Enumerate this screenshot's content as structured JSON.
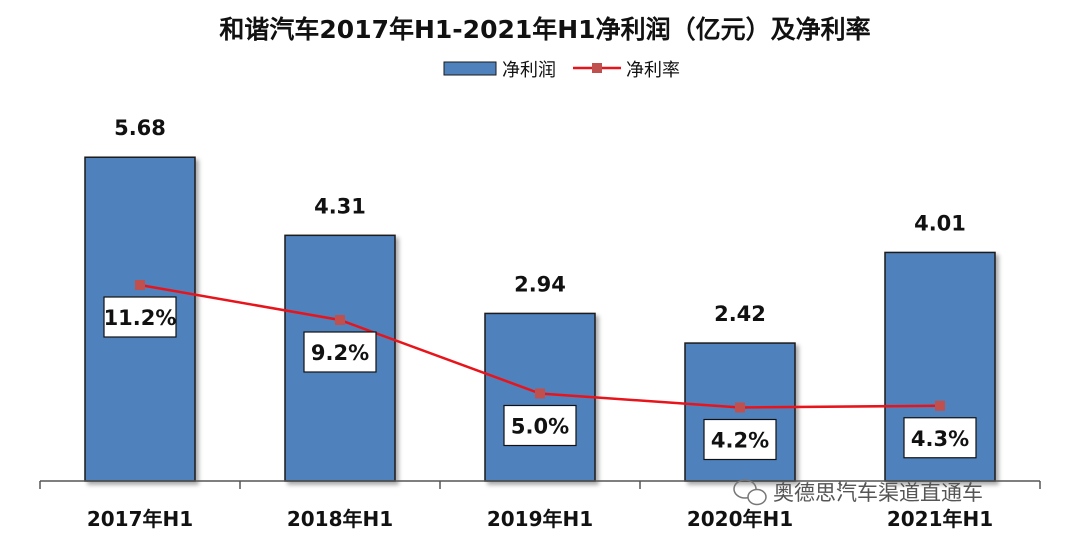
{
  "chart_data": {
    "type": "bar",
    "title": "和谐汽车2017年H1-2021年H1净利润（亿元）及净利率",
    "categories": [
      "2017年H1",
      "2018年H1",
      "2019年H1",
      "2020年H1",
      "2021年H1"
    ],
    "series": [
      {
        "name": "净利润",
        "kind": "bar",
        "values": [
          5.68,
          4.31,
          2.94,
          2.42,
          4.01
        ],
        "labels": [
          "5.68",
          "4.31",
          "2.94",
          "2.42",
          "4.01"
        ]
      },
      {
        "name": "净利率",
        "kind": "line",
        "values": [
          11.2,
          9.2,
          5.0,
          4.2,
          4.3
        ],
        "labels": [
          "11.2%",
          "9.2%",
          "5.0%",
          "4.2%",
          "4.3%"
        ]
      }
    ],
    "legend_position": "top",
    "grid": false,
    "colors": {
      "bar": "#4F81BD",
      "bar_border": "#1A1A1A",
      "line": "#E8141B",
      "marker": "#C0504D"
    }
  },
  "watermark": {
    "text": "奥德思汽车渠道直通车",
    "icon": "wechat-icon"
  }
}
